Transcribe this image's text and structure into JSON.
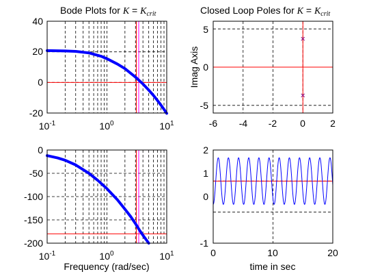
{
  "chart_data": [
    {
      "type": "line",
      "title": {
        "prefix": "Bode Plots for ",
        "k": "K",
        "eq": " = ",
        "ksym": "K",
        "ksub": "crit"
      },
      "xscale": "log",
      "xlim": [
        0.1,
        10
      ],
      "ylim": [
        -20,
        40
      ],
      "xticks": [
        {
          "base": "10",
          "exp": "-1"
        },
        {
          "base": "10",
          "exp": "0"
        },
        {
          "base": "10",
          "exp": "1"
        }
      ],
      "yticks": [
        "40",
        "20",
        "0",
        "-20"
      ],
      "y_tick_values": [
        40,
        20,
        0,
        -20
      ],
      "grid": true,
      "series": [
        {
          "color": "#0000ff",
          "x": [
            0.1,
            0.2,
            0.3,
            0.5,
            0.8,
            1.0,
            1.5,
            2.0,
            3.0,
            4.0,
            5.0,
            6.0,
            7.0,
            8.0,
            9.0,
            10.0
          ],
          "y": [
            20.8,
            20.6,
            20.3,
            19.3,
            17.1,
            15.5,
            12.0,
            9.0,
            3.5,
            -1.0,
            -5.0,
            -8.5,
            -11.8,
            -14.8,
            -17.6,
            -20.2
          ]
        }
      ],
      "reference_lines": [
        {
          "axis": "y",
          "value": 0,
          "color": "#ff0000"
        },
        {
          "axis": "x",
          "value": 3.1,
          "color": "#ff0000"
        },
        {
          "axis": "x",
          "value": 3.4,
          "color": "#ff00ff"
        }
      ]
    },
    {
      "type": "scatter",
      "title": {
        "prefix": "Closed Loop Poles for ",
        "k": "K",
        "eq": " = ",
        "ksym": "K",
        "ksub": "crit"
      },
      "ylabel": "Imag Axis",
      "xlim": [
        -6,
        2
      ],
      "ylim": [
        -6,
        6
      ],
      "xticks": [
        "-6",
        "-4",
        "-2",
        "0",
        "2"
      ],
      "x_tick_values": [
        -6,
        -4,
        -2,
        0,
        2
      ],
      "yticks": [
        "5",
        "0",
        "-5"
      ],
      "y_tick_values": [
        5,
        0,
        -5
      ],
      "grid": true,
      "points": [
        {
          "x": 0,
          "y": 3.7,
          "color": "#800080",
          "marker": "x"
        },
        {
          "x": 0,
          "y": -3.7,
          "color": "#800080",
          "marker": "x"
        }
      ],
      "reference_lines": [
        {
          "axis": "y",
          "value": 0,
          "color": "#ff0000"
        },
        {
          "axis": "x",
          "value": 0,
          "color": "#ff0000"
        }
      ]
    },
    {
      "type": "line",
      "xlabel": "Frequency (rad/sec)",
      "xscale": "log",
      "xlim": [
        0.1,
        10
      ],
      "ylim": [
        -200,
        0
      ],
      "xticks": [
        {
          "base": "10",
          "exp": "-1"
        },
        {
          "base": "10",
          "exp": "0"
        },
        {
          "base": "10",
          "exp": "1"
        }
      ],
      "yticks": [
        "0",
        "-50",
        "-100",
        "-150",
        "-200"
      ],
      "y_tick_values": [
        0,
        -50,
        -100,
        -150,
        -200
      ],
      "grid": true,
      "series": [
        {
          "color": "#0000ff",
          "x": [
            0.1,
            0.15,
            0.2,
            0.3,
            0.5,
            0.7,
            1.0,
            1.5,
            2.0,
            2.5,
            3.0,
            3.5,
            4.0,
            5.0
          ],
          "y": [
            -12,
            -17,
            -22,
            -32,
            -50,
            -65,
            -83,
            -107,
            -127,
            -143,
            -158,
            -172,
            -183,
            -200
          ]
        }
      ],
      "reference_lines": [
        {
          "axis": "y",
          "value": -180,
          "color": "#ff0000"
        },
        {
          "axis": "x",
          "value": 3.1,
          "color": "#ff0000"
        },
        {
          "axis": "x",
          "value": 3.4,
          "color": "#ff00ff"
        }
      ]
    },
    {
      "type": "line",
      "xlabel": "time in sec",
      "xlim": [
        0,
        20
      ],
      "ylim": [
        -1,
        2
      ],
      "xticks": [
        "0",
        "10",
        "20"
      ],
      "x_tick_values": [
        0,
        10,
        20
      ],
      "yticks": [
        "2",
        "1",
        "0",
        "-1"
      ],
      "y_tick_values": [
        2,
        1,
        0,
        -1
      ],
      "grid": true,
      "series": [
        {
          "color": "#0000ff",
          "function": "1 - 0.75*cos(3.7*t)",
          "t_range": [
            0,
            20
          ]
        }
      ],
      "reference_lines": [
        {
          "axis": "y",
          "value": 1,
          "color": "#ff0000"
        }
      ]
    }
  ]
}
